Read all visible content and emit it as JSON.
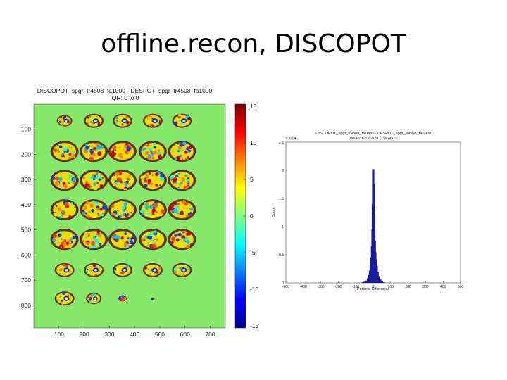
{
  "slide": {
    "title": "offline.recon, DISCOPOT"
  },
  "chart_data": [
    {
      "type": "heatmap",
      "title": "DISCOPOT_spgr_tr4508_fa1000 - DESPOT_spgr_tr4508_fa1000",
      "subtitle": "IQR: 0 to 0",
      "xlabel": "",
      "ylabel": "",
      "x_ticks": [
        100,
        200,
        300,
        400,
        500,
        600,
        700
      ],
      "y_ticks": [
        100,
        200,
        300,
        400,
        500,
        600,
        700,
        800
      ],
      "xlim": [
        0,
        760
      ],
      "ylim": [
        0,
        890
      ],
      "colorbar": {
        "min": -15,
        "max": 15,
        "ticks": [
          "15",
          "10",
          "5",
          "0",
          "-5",
          "-10",
          "-15"
        ],
        "colormap": "jet"
      },
      "background_color": "#86e868",
      "tiles": [
        {
          "row": 0,
          "col": 0,
          "kind": "small"
        },
        {
          "row": 0,
          "col": 1,
          "kind": "cap"
        },
        {
          "row": 0,
          "col": 2,
          "kind": "cap"
        },
        {
          "row": 0,
          "col": 3,
          "kind": "cap"
        },
        {
          "row": 0,
          "col": 4,
          "kind": "cap"
        },
        {
          "row": 1,
          "col": 0,
          "kind": "brain"
        },
        {
          "row": 1,
          "col": 1,
          "kind": "brain"
        },
        {
          "row": 1,
          "col": 2,
          "kind": "brain"
        },
        {
          "row": 1,
          "col": 3,
          "kind": "brain"
        },
        {
          "row": 1,
          "col": 4,
          "kind": "brain"
        },
        {
          "row": 2,
          "col": 0,
          "kind": "brain"
        },
        {
          "row": 2,
          "col": 1,
          "kind": "brain"
        },
        {
          "row": 2,
          "col": 2,
          "kind": "brain"
        },
        {
          "row": 2,
          "col": 3,
          "kind": "brain"
        },
        {
          "row": 2,
          "col": 4,
          "kind": "brain"
        },
        {
          "row": 3,
          "col": 0,
          "kind": "brain"
        },
        {
          "row": 3,
          "col": 1,
          "kind": "brain"
        },
        {
          "row": 3,
          "col": 2,
          "kind": "brain"
        },
        {
          "row": 3,
          "col": 3,
          "kind": "brain"
        },
        {
          "row": 3,
          "col": 4,
          "kind": "brain"
        },
        {
          "row": 4,
          "col": 0,
          "kind": "brain"
        },
        {
          "row": 4,
          "col": 1,
          "kind": "brain"
        },
        {
          "row": 4,
          "col": 2,
          "kind": "brain"
        },
        {
          "row": 4,
          "col": 3,
          "kind": "brain"
        },
        {
          "row": 4,
          "col": 4,
          "kind": "brain"
        },
        {
          "row": 5,
          "col": 0,
          "kind": "cap"
        },
        {
          "row": 5,
          "col": 1,
          "kind": "cap"
        },
        {
          "row": 5,
          "col": 2,
          "kind": "cap"
        },
        {
          "row": 5,
          "col": 3,
          "kind": "cap"
        },
        {
          "row": 5,
          "col": 4,
          "kind": "cap"
        },
        {
          "row": 6,
          "col": 0,
          "kind": "cap"
        },
        {
          "row": 6,
          "col": 1,
          "kind": "small"
        },
        {
          "row": 6,
          "col": 2,
          "kind": "tiny"
        },
        {
          "row": 6,
          "col": 3,
          "kind": "dot"
        }
      ]
    },
    {
      "type": "bar",
      "title": "DISCOPOT_spgr_tr4508_fa1000 - DESPOT_spgr_tr4508_fa1000",
      "subtitle": "Mean: 6.5269 SD: 36.4603",
      "xlabel": "Percent Difference",
      "ylabel": "Count",
      "y_multiplier": "x 10^4",
      "xlim": [
        -500,
        500
      ],
      "ylim": [
        0,
        2.5
      ],
      "x_ticks": [
        -500,
        -400,
        -300,
        -200,
        -100,
        0,
        100,
        200,
        300,
        400,
        500
      ],
      "y_ticks": [
        0,
        0.5,
        1,
        1.5,
        2,
        2.5
      ],
      "y_tick_labels": [
        "0",
        "0.5",
        "1",
        "1.5",
        "2",
        "2.5"
      ],
      "bar_color": "#1a1aa0",
      "bins": [
        {
          "x": -60,
          "value": 0.01
        },
        {
          "x": -50,
          "value": 0.02
        },
        {
          "x": -40,
          "value": 0.04
        },
        {
          "x": -30,
          "value": 0.08
        },
        {
          "x": -24,
          "value": 0.14
        },
        {
          "x": -18,
          "value": 0.22
        },
        {
          "x": -14,
          "value": 0.32
        },
        {
          "x": -10,
          "value": 0.45
        },
        {
          "x": -7,
          "value": 0.65
        },
        {
          "x": -4,
          "value": 0.95
        },
        {
          "x": -2,
          "value": 1.4
        },
        {
          "x": 0,
          "value": 2.02
        },
        {
          "x": 2,
          "value": 1.75
        },
        {
          "x": 4,
          "value": 1.25
        },
        {
          "x": 6,
          "value": 0.95
        },
        {
          "x": 9,
          "value": 0.75
        },
        {
          "x": 12,
          "value": 0.55
        },
        {
          "x": 16,
          "value": 0.42
        },
        {
          "x": 20,
          "value": 0.3
        },
        {
          "x": 25,
          "value": 0.2
        },
        {
          "x": 32,
          "value": 0.12
        },
        {
          "x": 40,
          "value": 0.06
        },
        {
          "x": 50,
          "value": 0.03
        },
        {
          "x": 62,
          "value": 0.01
        }
      ]
    }
  ]
}
